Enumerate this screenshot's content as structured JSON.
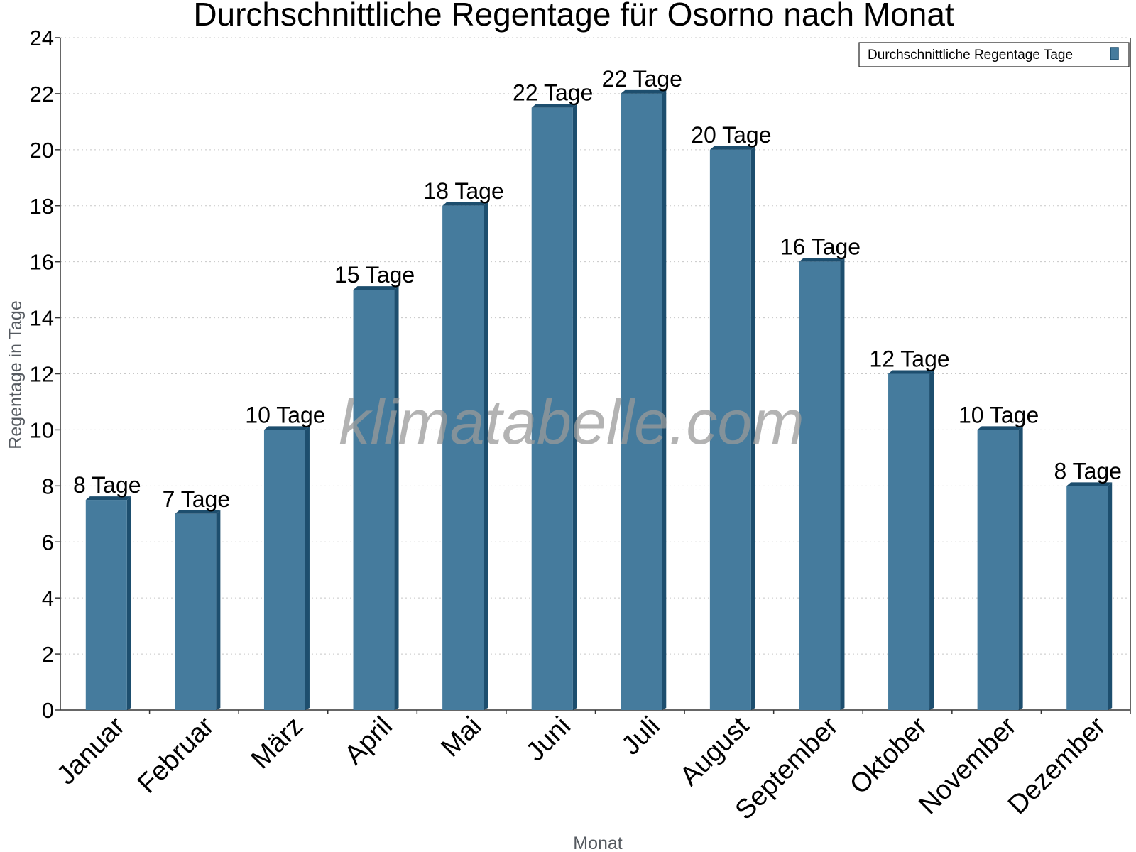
{
  "chart_data": {
    "type": "bar",
    "title": "Durchschnittliche Regentage für Osorno nach Monat",
    "xlabel": "Monat",
    "ylabel": "Regentage in Tage",
    "categories": [
      "Januar",
      "Februar",
      "März",
      "April",
      "Mai",
      "Juni",
      "Juli",
      "August",
      "September",
      "Oktober",
      "November",
      "Dezember"
    ],
    "series": [
      {
        "name": "Durchschnittliche Regentage Tage",
        "values": [
          7.5,
          7,
          10,
          15,
          18,
          21.5,
          22,
          20,
          16,
          12,
          10,
          8
        ],
        "labels": [
          "8 Tage",
          "7 Tage",
          "10 Tage",
          "15 Tage",
          "18 Tage",
          "22 Tage",
          "22 Tage",
          "20 Tage",
          "16 Tage",
          "12 Tage",
          "10 Tage",
          "8 Tage"
        ]
      }
    ],
    "ylim": [
      0,
      24
    ],
    "yticks": [
      0,
      2,
      4,
      6,
      8,
      10,
      12,
      14,
      16,
      18,
      20,
      22,
      24
    ],
    "grid": true,
    "legend_position": "top-right",
    "colors": {
      "bar_front": "#457b9d",
      "bar_side": "#1d4e6e",
      "bar_top": "#1d4e6e"
    }
  },
  "watermark": "klimatabelle.com"
}
